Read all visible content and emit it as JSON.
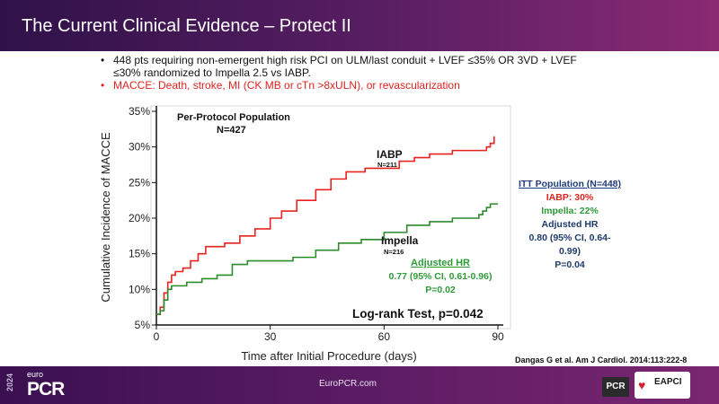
{
  "slide": {
    "title": "The Current Clinical Evidence – Protect II",
    "bullets": [
      "448 pts requiring non-emergent high risk PCI on ULM/last conduit + LVEF ≤35% OR 3VD + LVEF ≤30% randomized to Impella 2.5 vs IABP.",
      "MACCE: Death, stroke, MI (CK MB or cTn >8xULN), or revascularization"
    ],
    "citation": "Dangas G et al. Am J Cardiol. 2014:113:222-8"
  },
  "itt_box": {
    "title": "ITT Population (N=448)",
    "iabp": "IABP: 30%",
    "impella": "Impella: 22%",
    "adj_label": "Adjusted HR",
    "hr": "0.80 (95% CI, 0.64-",
    "hr2": "0.99)",
    "p": "P=0.04"
  },
  "footer": {
    "url": "EuroPCR.com",
    "year": "2024",
    "euro": "euro",
    "pcr": "PCR",
    "pcr_badge": "PCR",
    "eapci": "EAPCI"
  },
  "colors": {
    "iabp": "#e8231f",
    "impella": "#2d8a2d",
    "itt_title": "#1f3a7a",
    "adjusted_hr": "#2e9a3a"
  },
  "chart_data": {
    "type": "line",
    "title": "",
    "xlabel": "Time after Initial Procedure (days)",
    "ylabel": "Cumulative Incidence of MACCE",
    "xlim": [
      0,
      90
    ],
    "ylim": [
      5,
      35
    ],
    "x_ticks": [
      0,
      30,
      60,
      90
    ],
    "y_ticks": [
      5,
      10,
      15,
      20,
      25,
      30,
      35
    ],
    "y_tick_labels": [
      "5%",
      "10%",
      "15%",
      "20%",
      "25%",
      "30%",
      "35%"
    ],
    "population_label": "Per-Protocol Population",
    "population_n": "N=427",
    "series": [
      {
        "name": "IABP",
        "n_label": "N=211",
        "color": "#e8231f",
        "points": [
          [
            0,
            6.5
          ],
          [
            1,
            7.5
          ],
          [
            2,
            9.5
          ],
          [
            3,
            11
          ],
          [
            4,
            12
          ],
          [
            5,
            12.5
          ],
          [
            7,
            13
          ],
          [
            9,
            14
          ],
          [
            11,
            15
          ],
          [
            13,
            16
          ],
          [
            18,
            16.5
          ],
          [
            22,
            17.5
          ],
          [
            26,
            18.5
          ],
          [
            30,
            20
          ],
          [
            33,
            21
          ],
          [
            37,
            22.5
          ],
          [
            42,
            24
          ],
          [
            46,
            25.5
          ],
          [
            50,
            26.5
          ],
          [
            55,
            27
          ],
          [
            60,
            27
          ],
          [
            64,
            28
          ],
          [
            68,
            28.5
          ],
          [
            72,
            29
          ],
          [
            78,
            29.5
          ],
          [
            84,
            29.5
          ],
          [
            87,
            30
          ],
          [
            88,
            30.5
          ],
          [
            89,
            31.5
          ]
        ]
      },
      {
        "name": "Impella",
        "n_label": "N=216",
        "color": "#2d8a2d",
        "points": [
          [
            0,
            6.5
          ],
          [
            1,
            7
          ],
          [
            2,
            8.5
          ],
          [
            3,
            10
          ],
          [
            4,
            10.5
          ],
          [
            8,
            11
          ],
          [
            12,
            11.5
          ],
          [
            16,
            12
          ],
          [
            20,
            13.5
          ],
          [
            24,
            14
          ],
          [
            30,
            14
          ],
          [
            36,
            14.5
          ],
          [
            42,
            15.5
          ],
          [
            48,
            16.5
          ],
          [
            54,
            17
          ],
          [
            60,
            18
          ],
          [
            66,
            19
          ],
          [
            72,
            19.5
          ],
          [
            78,
            20
          ],
          [
            82,
            20
          ],
          [
            85,
            20.5
          ],
          [
            86,
            21
          ],
          [
            87,
            21.5
          ],
          [
            88,
            22
          ],
          [
            90,
            22
          ]
        ]
      }
    ],
    "annotations": {
      "adjusted_hr_label": "Adjusted HR",
      "adjusted_hr_value": "0.77 (95% CI, 0.61-0.96)",
      "adjusted_hr_p": "P=0.02",
      "logrank": "Log-rank Test, p=0.042"
    }
  }
}
